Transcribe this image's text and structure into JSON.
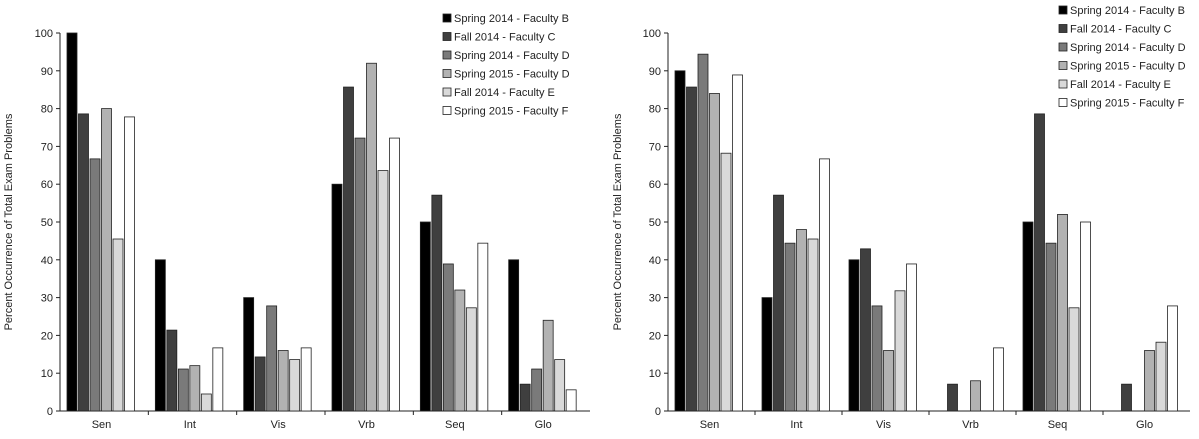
{
  "chart_data": [
    {
      "type": "bar",
      "ylabel": "Percent Occurrence of Total Exam Problems",
      "xlabel": "",
      "ylim": [
        0,
        100
      ],
      "yticks": [
        0,
        10,
        20,
        30,
        40,
        50,
        60,
        70,
        80,
        90,
        100
      ],
      "grid": false,
      "legend_position": "top-right",
      "categories": [
        "Sen",
        "Int",
        "Vis",
        "Vrb",
        "Seq",
        "Glo"
      ],
      "series": [
        {
          "name": "Spring 2014 - Faculty B",
          "color": "#000000",
          "values": [
            100,
            40,
            30,
            60,
            50,
            40
          ]
        },
        {
          "name": "Fall 2014 - Faculty C",
          "color": "#3f3f3f",
          "values": [
            78.6,
            21.4,
            14.3,
            85.7,
            57.1,
            7.1
          ]
        },
        {
          "name": "Spring 2014 - Faculty D",
          "color": "#7a7a7a",
          "values": [
            66.7,
            11.1,
            27.8,
            72.2,
            38.9,
            11.1
          ]
        },
        {
          "name": "Spring 2015 - Faculty D",
          "color": "#b2b2b2",
          "values": [
            80,
            12,
            16,
            92,
            32,
            24
          ]
        },
        {
          "name": "Fall 2014 - Faculty E",
          "color": "#d9d9d9",
          "values": [
            45.5,
            4.5,
            13.6,
            63.6,
            27.3,
            13.6
          ]
        },
        {
          "name": "Spring 2015 - Faculty F",
          "color": "#ffffff",
          "values": [
            77.8,
            16.7,
            16.7,
            72.2,
            44.4,
            5.6
          ]
        }
      ]
    },
    {
      "type": "bar",
      "ylabel": "Percent Occurrence of Total Exam Problems",
      "xlabel": "",
      "ylim": [
        0,
        100
      ],
      "yticks": [
        0,
        10,
        20,
        30,
        40,
        50,
        60,
        70,
        80,
        90,
        100
      ],
      "grid": false,
      "legend_position": "top-right",
      "categories": [
        "Sen",
        "Int",
        "Vis",
        "Vrb",
        "Seq",
        "Glo"
      ],
      "series": [
        {
          "name": "Spring 2014 - Faculty B",
          "color": "#000000",
          "values": [
            90,
            30,
            40,
            0,
            50,
            0
          ]
        },
        {
          "name": "Fall 2014 - Faculty C",
          "color": "#3f3f3f",
          "values": [
            85.7,
            57.1,
            42.9,
            7.1,
            78.6,
            7.1
          ]
        },
        {
          "name": "Spring 2014 - Faculty D",
          "color": "#7a7a7a",
          "values": [
            94.4,
            44.4,
            27.8,
            0,
            44.4,
            0
          ]
        },
        {
          "name": "Spring 2015 - Faculty D",
          "color": "#b2b2b2",
          "values": [
            84,
            48,
            16,
            8,
            52,
            16
          ]
        },
        {
          "name": "Fall 2014 - Faculty E",
          "color": "#d9d9d9",
          "values": [
            68.2,
            45.5,
            31.8,
            0,
            27.3,
            18.2
          ]
        },
        {
          "name": "Spring 2015 - Faculty F",
          "color": "#ffffff",
          "values": [
            88.9,
            66.7,
            38.9,
            16.7,
            50,
            27.8
          ]
        }
      ]
    }
  ]
}
